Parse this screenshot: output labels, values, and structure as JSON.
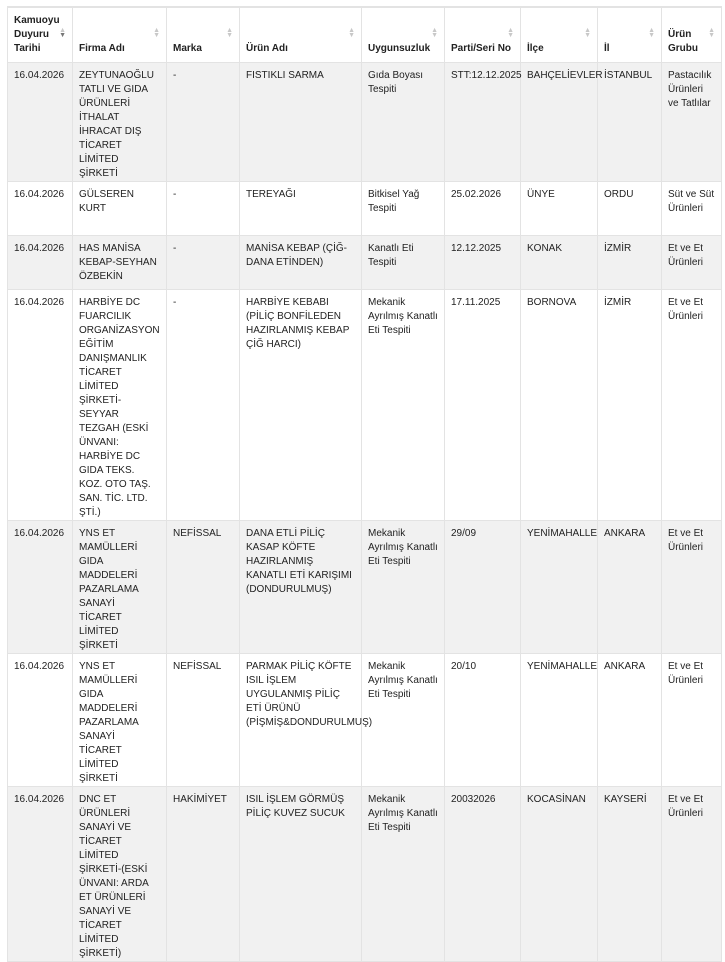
{
  "columns": [
    "Kamuoyu Duyuru Tarihi",
    "Firma Adı",
    "Marka",
    "Ürün Adı",
    "Uygunsuzluk",
    "Parti/Seri No",
    "İlçe",
    "İl",
    "Ürün Grubu"
  ],
  "sorted_column": "Kamuoyu Duyuru Tarihi",
  "rows": [
    [
      "16.04.2026",
      "ZEYTUNAOĞLU TATLI VE GIDA ÜRÜNLERİ İTHALAT İHRACAT DIŞ TİCARET LİMİTED ŞİRKETİ",
      "-",
      "FISTIKLI SARMA",
      "Gıda Boyası Tespiti",
      "STT:12.12.2025",
      "BAHÇELİEVLER",
      "İSTANBUL",
      "Pastacılık Ürünleri ve Tatlılar"
    ],
    [
      "16.04.2026",
      "GÜLSEREN KURT",
      "-",
      "TEREYAĞI",
      "Bitkisel Yağ Tespiti",
      "25.02.2026",
      "ÜNYE",
      "ORDU",
      "Süt ve Süt Ürünleri"
    ],
    [
      "16.04.2026",
      "HAS MANİSA KEBAP-SEYHAN ÖZBEKİN",
      "-",
      "MANİSA KEBAP (ÇİĞ-DANA ETİNDEN)",
      "Kanatlı Eti Tespiti",
      "12.12.2025",
      "KONAK",
      "İZMİR",
      "Et ve Et Ürünleri"
    ],
    [
      "16.04.2026",
      "HARBİYE DC FUARCILIK ORGANİZASYON EĞİTİM DANIŞMANLIK TİCARET LİMİTED ŞİRKETİ-SEYYAR TEZGAH (ESKİ ÜNVANI: HARBİYE DC GIDA TEKS. KOZ. OTO TAŞ. SAN. TİC. LTD. ŞTİ.)",
      "-",
      "HARBİYE KEBABI (PİLİÇ BONFİLEDEN HAZIRLANMIŞ KEBAP ÇİĞ HARCI)",
      "Mekanik Ayrılmış Kanatlı Eti Tespiti",
      "17.11.2025",
      "BORNOVA",
      "İZMİR",
      "Et ve Et Ürünleri"
    ],
    [
      "16.04.2026",
      "YNS ET MAMÜLLERİ GIDA MADDELERİ PAZARLAMA SANAYİ TİCARET LİMİTED ŞİRKETİ",
      "NEFİSSAL",
      "DANA ETLİ PİLİÇ KASAP KÖFTE HAZIRLANMIŞ KANATLI ETİ KARIŞIMI (DONDURULMUŞ)",
      "Mekanik Ayrılmış Kanatlı Eti Tespiti",
      "29/09",
      "YENİMAHALLE",
      "ANKARA",
      "Et ve Et Ürünleri"
    ],
    [
      "16.04.2026",
      "YNS ET MAMÜLLERİ GIDA MADDELERİ PAZARLAMA SANAYİ TİCARET LİMİTED ŞİRKETİ",
      "NEFİSSAL",
      "PARMAK PİLİÇ KÖFTE ISIL İŞLEM UYGULANMIŞ PİLİÇ ETİ ÜRÜNÜ (PİŞMİŞ&DONDURULMUŞ)",
      "Mekanik Ayrılmış Kanatlı Eti Tespiti",
      "20/10",
      "YENİMAHALLE",
      "ANKARA",
      "Et ve Et Ürünleri"
    ],
    [
      "16.04.2026",
      "DNC ET ÜRÜNLERİ SANAYİ VE TİCARET LİMİTED ŞİRKETİ-(ESKİ ÜNVANI: ARDA ET ÜRÜNLERİ SANAYİ VE TİCARET LİMİTED ŞİRKETİ)",
      "HAKİMİYET",
      "ISIL İŞLEM GÖRMÜŞ PİLİÇ KUVEZ SUCUK",
      "Mekanik Ayrılmış Kanatlı Eti Tespiti",
      "20032026",
      "KOCASİNAN",
      "KAYSERİ",
      "Et ve Et Ürünleri"
    ]
  ]
}
